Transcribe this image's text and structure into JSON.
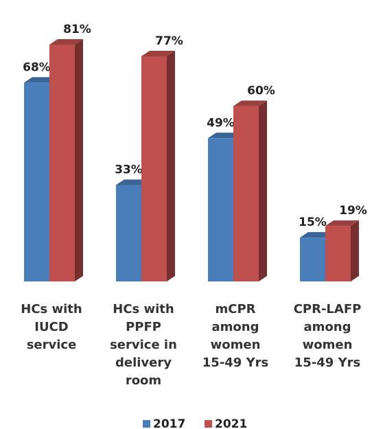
{
  "chart_data": {
    "type": "bar3d",
    "categories": [
      "HCs with\nIUCD\nservice",
      "HCs with\nPPFP\nservice in\ndelivery\nroom",
      "mCPR\namong\nwomen\n15-49 Yrs",
      "CPR-LAFP\namong\nwomen\n15-49 Yrs"
    ],
    "series": [
      {
        "name": "2017",
        "color": "#4a7ebb",
        "values": [
          68,
          33,
          49,
          15
        ],
        "value_labels": [
          "68%",
          "33%",
          "49%",
          "15%"
        ]
      },
      {
        "name": "2021",
        "color": "#c0504d",
        "values": [
          81,
          77,
          60,
          19
        ],
        "value_labels": [
          "81%",
          "77%",
          "60%",
          "19%"
        ]
      }
    ],
    "legend": "bottom"
  }
}
